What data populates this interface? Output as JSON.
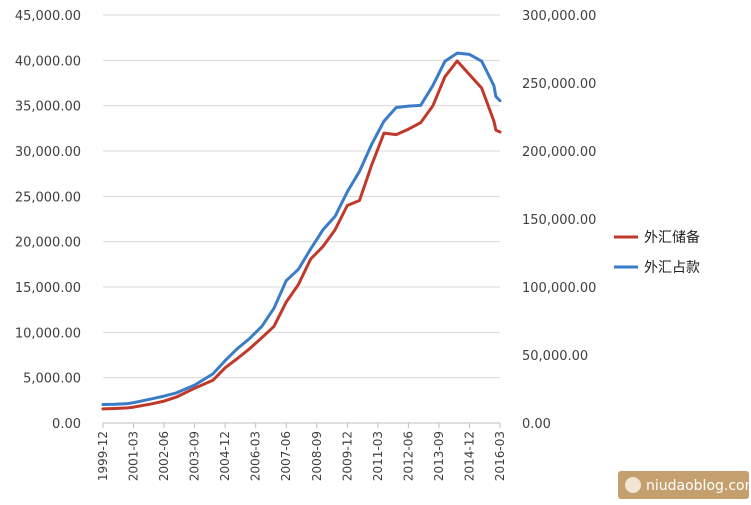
{
  "chart_data": {
    "type": "line",
    "title": "",
    "xlabel": "",
    "y_left": {
      "ylim": [
        0,
        45000
      ],
      "ticks": [
        "0.00",
        "5,000.00",
        "10,000.00",
        "15,000.00",
        "20,000.00",
        "25,000.00",
        "30,000.00",
        "35,000.00",
        "40,000.00",
        "45,000.00"
      ]
    },
    "y_right": {
      "ylim": [
        0,
        300000
      ],
      "ticks": [
        "0.00",
        "50,000.00",
        "100,000.00",
        "150,000.00",
        "200,000.00",
        "250,000.00",
        "300,000.00"
      ]
    },
    "x_ticks": [
      "1999-12",
      "2001-03",
      "2002-06",
      "2003-09",
      "2004-12",
      "2006-03",
      "2007-06",
      "2008-09",
      "2009-12",
      "2011-03",
      "2012-06",
      "2013-09",
      "2014-12",
      "2016-03"
    ],
    "grid": true,
    "legend_position": "right",
    "series": [
      {
        "name": "外汇储备",
        "axis": "left",
        "color": "#c0392b",
        "points": [
          [
            "1999-12",
            1550
          ],
          [
            "2000-06",
            1600
          ],
          [
            "2000-12",
            1660
          ],
          [
            "2001-03",
            1750
          ],
          [
            "2001-12",
            2120
          ],
          [
            "2002-06",
            2420
          ],
          [
            "2002-12",
            2860
          ],
          [
            "2003-09",
            3840
          ],
          [
            "2004-06",
            4710
          ],
          [
            "2004-12",
            6100
          ],
          [
            "2005-06",
            7110
          ],
          [
            "2005-12",
            8190
          ],
          [
            "2006-06",
            9410
          ],
          [
            "2006-12",
            10660
          ],
          [
            "2007-06",
            13330
          ],
          [
            "2007-12",
            15280
          ],
          [
            "2008-06",
            18090
          ],
          [
            "2008-12",
            19460
          ],
          [
            "2009-06",
            21320
          ],
          [
            "2009-12",
            23990
          ],
          [
            "2010-06",
            24540
          ],
          [
            "2010-12",
            28470
          ],
          [
            "2011-06",
            31970
          ],
          [
            "2011-12",
            31810
          ],
          [
            "2012-06",
            32400
          ],
          [
            "2012-12",
            33120
          ],
          [
            "2013-06",
            34970
          ],
          [
            "2013-12",
            38210
          ],
          [
            "2014-06",
            39930
          ],
          [
            "2014-12",
            38430
          ],
          [
            "2015-06",
            36940
          ],
          [
            "2015-12",
            33300
          ],
          [
            "2016-01",
            32300
          ],
          [
            "2016-03",
            32100
          ]
        ]
      },
      {
        "name": "外汇占款",
        "axis": "right",
        "color": "#3a7cc7",
        "points": [
          [
            "1999-12",
            13600
          ],
          [
            "2000-06",
            13800
          ],
          [
            "2000-12",
            14300
          ],
          [
            "2001-03",
            14900
          ],
          [
            "2001-12",
            17800
          ],
          [
            "2002-06",
            19800
          ],
          [
            "2002-12",
            22100
          ],
          [
            "2003-09",
            27900
          ],
          [
            "2004-06",
            36100
          ],
          [
            "2004-12",
            45900
          ],
          [
            "2005-06",
            54700
          ],
          [
            "2005-12",
            62100
          ],
          [
            "2006-06",
            71000
          ],
          [
            "2006-12",
            84400
          ],
          [
            "2007-06",
            104600
          ],
          [
            "2007-12",
            113000
          ],
          [
            "2008-06",
            128000
          ],
          [
            "2008-12",
            142000
          ],
          [
            "2009-06",
            152000
          ],
          [
            "2009-12",
            170000
          ],
          [
            "2010-06",
            185000
          ],
          [
            "2010-12",
            205000
          ],
          [
            "2011-06",
            222000
          ],
          [
            "2011-12",
            232000
          ],
          [
            "2012-06",
            233000
          ],
          [
            "2012-12",
            233500
          ],
          [
            "2013-06",
            248000
          ],
          [
            "2013-12",
            266000
          ],
          [
            "2014-06",
            272000
          ],
          [
            "2014-12",
            271000
          ],
          [
            "2015-06",
            266000
          ],
          [
            "2015-12",
            248000
          ],
          [
            "2016-01",
            240000
          ],
          [
            "2016-03",
            237000
          ]
        ]
      }
    ]
  },
  "watermark": "niudaoblog.com"
}
